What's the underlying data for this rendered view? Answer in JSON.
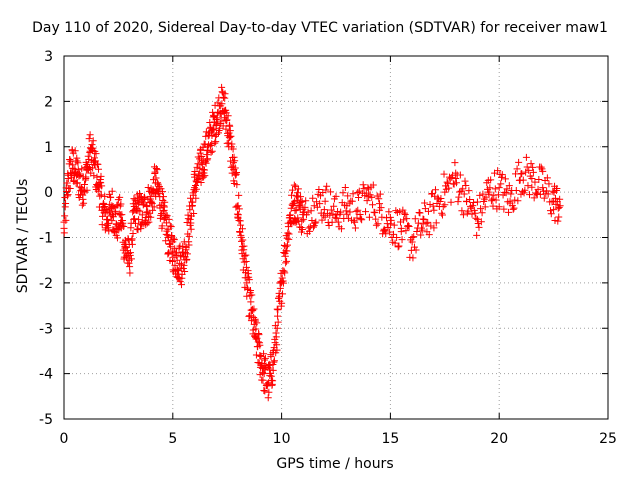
{
  "chart_data": {
    "type": "scatter",
    "title": "Day 110 of 2020, Sidereal Day-to-day VTEC variation (SDTVAR) for receiver maw1",
    "xlabel": "GPS time / hours",
    "ylabel": "SDTVAR / TECUs",
    "xlim": [
      0,
      25
    ],
    "ylim": [
      -5,
      3
    ],
    "xticks": [
      0,
      5,
      10,
      15,
      20,
      25
    ],
    "yticks": [
      -5,
      -4,
      -3,
      -2,
      -1,
      0,
      1,
      2,
      3
    ],
    "grid": true,
    "marker": "+",
    "color": "#ff0000",
    "x_data_range": [
      0,
      22.8
    ],
    "series": [
      {
        "name": "SDTVAR",
        "x": [
          0.0,
          0.2,
          0.4,
          0.6,
          0.8,
          1.0,
          1.2,
          1.4,
          1.6,
          1.8,
          2.0,
          2.2,
          2.4,
          2.6,
          2.8,
          3.0,
          3.2,
          3.4,
          3.6,
          3.8,
          4.0,
          4.2,
          4.4,
          4.6,
          4.8,
          5.0,
          5.2,
          5.4,
          5.6,
          5.8,
          6.0,
          6.2,
          6.4,
          6.6,
          6.8,
          7.0,
          7.2,
          7.4,
          7.6,
          7.8,
          8.0,
          8.2,
          8.4,
          8.6,
          8.8,
          9.0,
          9.2,
          9.4,
          9.6,
          9.8,
          10.0,
          10.2,
          10.4,
          10.6,
          10.8,
          11.0,
          11.5,
          12.0,
          12.5,
          13.0,
          13.5,
          14.0,
          14.5,
          15.0,
          15.5,
          16.0,
          16.5,
          17.0,
          17.5,
          18.0,
          18.5,
          19.0,
          19.5,
          20.0,
          20.5,
          21.0,
          21.5,
          22.0,
          22.5,
          22.8
        ],
        "values": [
          -0.8,
          0.3,
          0.6,
          0.4,
          0.1,
          0.3,
          0.9,
          0.6,
          0.2,
          -0.4,
          -0.6,
          -0.3,
          -0.7,
          -0.5,
          -1.2,
          -1.5,
          -0.6,
          -0.4,
          -0.5,
          -0.3,
          -0.2,
          0.2,
          -0.1,
          -0.6,
          -1.0,
          -1.3,
          -1.5,
          -1.6,
          -1.2,
          -0.6,
          0.1,
          0.4,
          0.7,
          1.0,
          1.3,
          1.6,
          1.9,
          1.8,
          1.2,
          0.5,
          -0.3,
          -1.2,
          -2.0,
          -2.6,
          -3.2,
          -3.6,
          -4.0,
          -4.2,
          -3.8,
          -3.0,
          -2.0,
          -1.2,
          -0.5,
          -0.2,
          -0.3,
          -0.6,
          -0.3,
          -0.2,
          -0.5,
          -0.3,
          -0.4,
          -0.1,
          -0.4,
          -0.7,
          -0.8,
          -1.1,
          -0.7,
          -0.4,
          0.0,
          0.3,
          -0.2,
          -0.6,
          0.0,
          0.1,
          -0.2,
          0.4,
          0.3,
          0.1,
          -0.2,
          -0.3
        ]
      }
    ]
  }
}
